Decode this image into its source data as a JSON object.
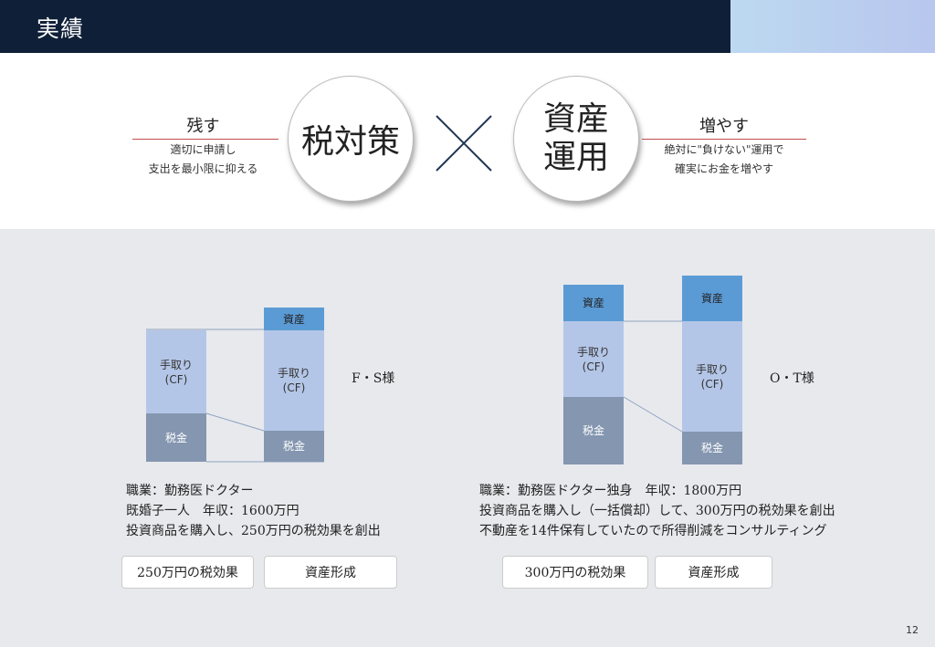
{
  "header": {
    "title": "実績"
  },
  "top": {
    "left": {
      "title": "残す",
      "desc_line1": "適切に申請し",
      "desc_line2": "支出を最小限に抑える"
    },
    "circle1": "税対策",
    "circle2_line1": "資産",
    "circle2_line2": "運用",
    "right": {
      "title": "増やす",
      "desc_line1": "絶対に\"負けない\"運用で",
      "desc_line2": "確実にお金を増やす"
    }
  },
  "case1": {
    "name": "F・S様",
    "bar_labels": {
      "asset": "資産",
      "cf": "手取り\n(CF)",
      "tax": "税金"
    },
    "desc": [
      "職業：勤務医ドクター",
      "既婚子一人　年収：1600万円",
      "投資商品を購入し、250万円の税効果を創出"
    ],
    "button1": "250万円の税効果",
    "button2": "資産形成"
  },
  "case2": {
    "name": "O・T様",
    "bar_labels": {
      "asset": "資産",
      "cf": "手取り\n(CF)",
      "tax": "税金"
    },
    "desc": [
      "職業：勤務医ドクター独身　年収：1800万円",
      "投資商品を購入し（一括償却）して、300万円の税効果を創出",
      "不動産を14件保有していたので所得削減をコンサルティング"
    ],
    "button1": "300万円の税効果",
    "button2": "資産形成"
  },
  "page_number": "12",
  "colors": {
    "header": "#0f1f38",
    "asset": "#5b9bd5",
    "cf": "#b4c6e7",
    "tax": "#8496b0",
    "accent_line": "#c0504d"
  }
}
